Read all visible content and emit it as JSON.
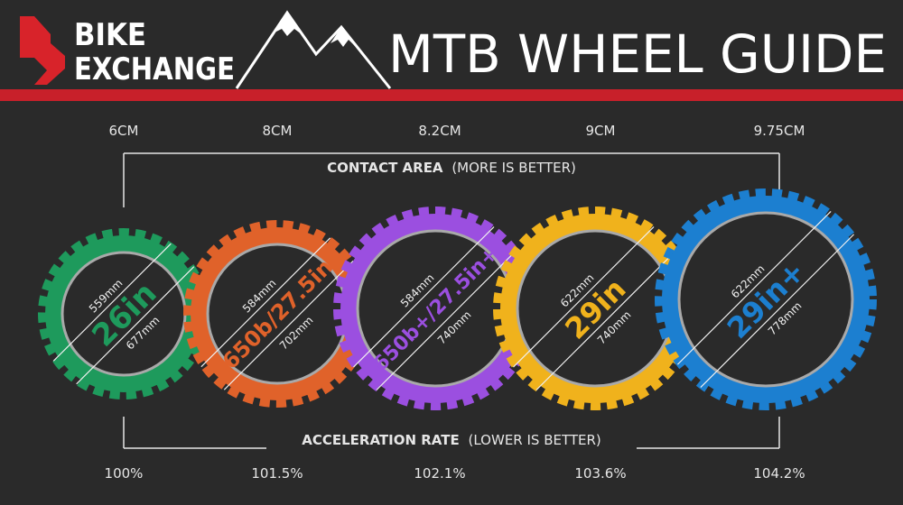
{
  "brand": {
    "line1": "BIKE",
    "line2": "EXCHANGE",
    "logo_color": "#d8232a"
  },
  "title": "MTB WHEEL GUIDE",
  "accent_bar_color": "#c8202a",
  "contact_area": {
    "label_bold": "CONTACT AREA",
    "label_note": "(MORE IS BETTER)",
    "values": [
      "6CM",
      "8CM",
      "8.2CM",
      "9CM",
      "9.75CM"
    ]
  },
  "acceleration_rate": {
    "label_bold": "ACCELERATION RATE",
    "label_note": "(LOWER IS BETTER)",
    "values": [
      "100%",
      "101.5%",
      "102.1%",
      "103.6%",
      "104.2%"
    ]
  },
  "wheels": [
    {
      "name": "26in",
      "rim": "559mm",
      "outer": "677mm",
      "color": "#1e9a5c"
    },
    {
      "name": "650b/27.5in",
      "rim": "584mm",
      "outer": "702mm",
      "color": "#e0622a"
    },
    {
      "name": "650b+/27.5in+",
      "rim": "584mm",
      "outer": "740mm",
      "color": "#9b4fe0"
    },
    {
      "name": "29in",
      "rim": "622mm",
      "outer": "740mm",
      "color": "#f0b21c"
    },
    {
      "name": "29in+",
      "rim": "622mm",
      "outer": "778mm",
      "color": "#1c7fd0"
    }
  ]
}
